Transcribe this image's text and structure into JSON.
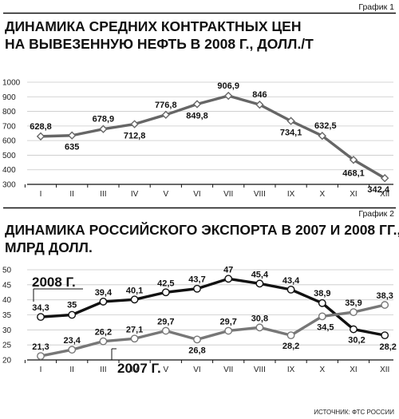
{
  "chart_data": [
    {
      "type": "line",
      "tag": "График 1",
      "title_lines": [
        "ДИНАМИКА СРЕДНИХ КОНТРАКТНЫХ ЦЕН",
        "НА ВЫВЕЗЕННУЮ НЕФТЬ В 2008 Г., ДОЛЛ./Т"
      ],
      "categories": [
        "I",
        "II",
        "III",
        "IV",
        "V",
        "VI",
        "VII",
        "VIII",
        "IX",
        "X",
        "XI",
        "XII"
      ],
      "yticks": [
        "300",
        "400",
        "500",
        "600",
        "700",
        "800",
        "900",
        "1000"
      ],
      "ylim": [
        300,
        1000
      ],
      "series": [
        {
          "color": "#666666",
          "values": [
            628.8,
            635,
            678.9,
            712.8,
            776.8,
            849.8,
            906.9,
            846,
            734.1,
            632.5,
            468.1,
            342.4
          ],
          "labels": [
            "628,8",
            "635",
            "678,9",
            "712,8",
            "776,8",
            "849,8",
            "906,9",
            "846",
            "734,1",
            "632,5",
            "468,1",
            "342,4"
          ]
        }
      ]
    },
    {
      "type": "line",
      "tag": "График 2",
      "title_lines": [
        "ДИНАМИКА РОССИЙСКОГО ЭКСПОРТА В 2007 И 2008 ГГ.,",
        "МЛРД ДОЛЛ."
      ],
      "categories": [
        "I",
        "II",
        "III",
        "IV",
        "V",
        "VI",
        "VII",
        "VIII",
        "IX",
        "X",
        "XI",
        "XII"
      ],
      "yticks": [
        "20",
        "25",
        "30",
        "35",
        "40",
        "45",
        "50"
      ],
      "ylim": [
        20,
        50
      ],
      "series": [
        {
          "name": "2008 Г.",
          "color": "#111111",
          "values": [
            34.3,
            35,
            39.4,
            40.1,
            42.5,
            43.7,
            47,
            45.4,
            43.4,
            38.9,
            30.2,
            28.2
          ],
          "labels": [
            "34,3",
            "35",
            "39,4",
            "40,1",
            "42,5",
            "43,7",
            "47",
            "45,4",
            "43,4",
            "38,9",
            "30,2",
            "28,2"
          ]
        },
        {
          "name": "2007 Г.",
          "color": "#777777",
          "values": [
            21.3,
            23.4,
            26.2,
            27.1,
            29.7,
            26.8,
            29.7,
            30.8,
            28.2,
            34.5,
            35.9,
            38.3
          ],
          "labels": [
            "21,3",
            "23,4",
            "26,2",
            "27,1",
            "29,7",
            "26,8",
            "29,7",
            "30,8",
            "28,2",
            "34,5",
            "35,9",
            "38,3"
          ]
        }
      ]
    }
  ],
  "source": "ИСТОЧНИК: ФТС РОССИИ"
}
